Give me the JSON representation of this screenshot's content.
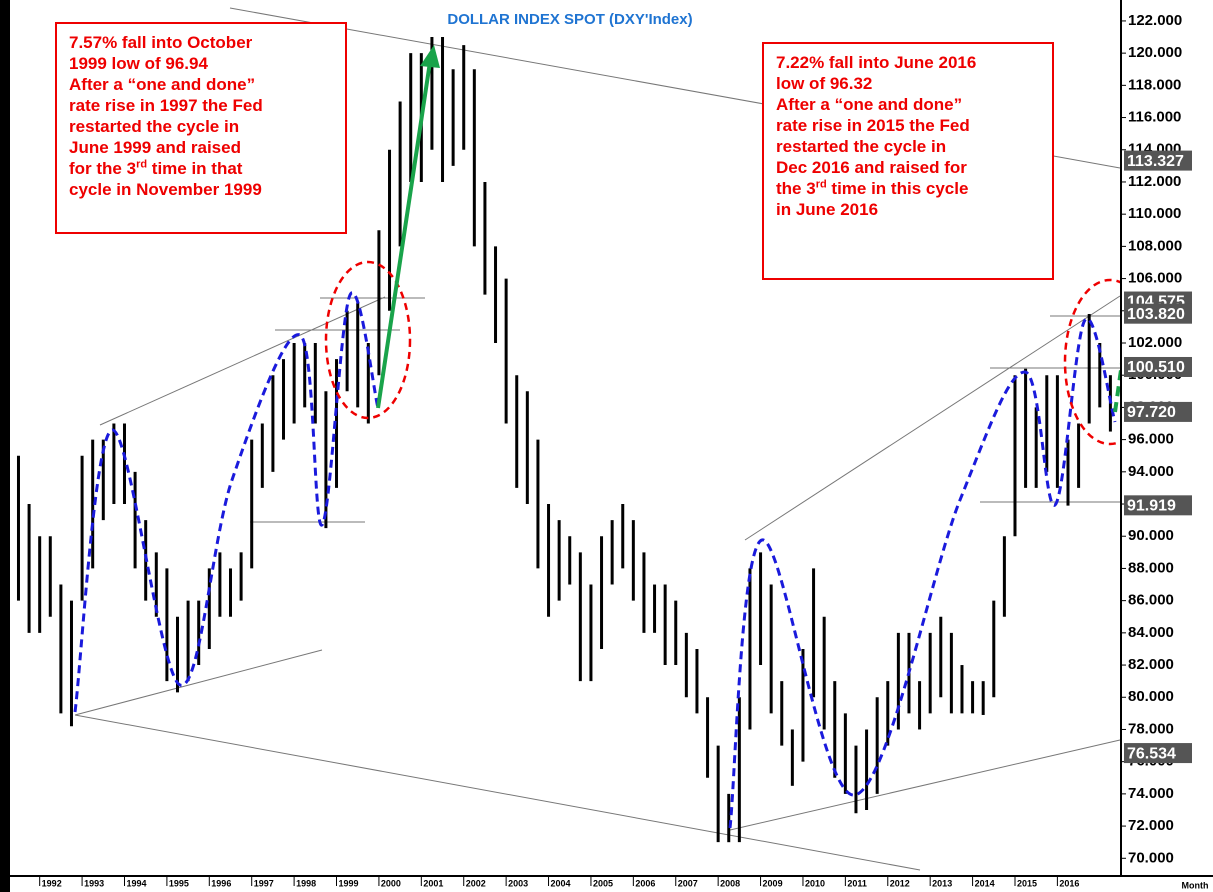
{
  "chart_data": {
    "type": "range-bar",
    "title": "DOLLAR INDEX SPOT (DXY'Index)",
    "x_label": "Month",
    "color": "#000000",
    "x": [
      1991.5,
      1991.75,
      1992.0,
      1992.25,
      1992.5,
      1992.75,
      1993.0,
      1993.25,
      1993.5,
      1993.75,
      1994.0,
      1994.25,
      1994.5,
      1994.75,
      1995.0,
      1995.25,
      1995.5,
      1995.75,
      1996.0,
      1996.25,
      1996.5,
      1996.75,
      1997.0,
      1997.25,
      1997.5,
      1997.75,
      1998.0,
      1998.25,
      1998.5,
      1998.75,
      1999.0,
      1999.25,
      1999.5,
      1999.75,
      2000.0,
      2000.25,
      2000.5,
      2000.75,
      2001.0,
      2001.25,
      2001.5,
      2001.75,
      2002.0,
      2002.25,
      2002.5,
      2002.75,
      2003.0,
      2003.25,
      2003.5,
      2003.75,
      2004.0,
      2004.25,
      2004.5,
      2004.75,
      2005.0,
      2005.25,
      2005.5,
      2005.75,
      2006.0,
      2006.25,
      2006.5,
      2006.75,
      2007.0,
      2007.25,
      2007.5,
      2007.75,
      2008.0,
      2008.25,
      2008.5,
      2008.75,
      2009.0,
      2009.25,
      2009.5,
      2009.75,
      2010.0,
      2010.25,
      2010.5,
      2010.75,
      2011.0,
      2011.25,
      2011.5,
      2011.75,
      2012.0,
      2012.25,
      2012.5,
      2012.75,
      2013.0,
      2013.25,
      2013.5,
      2013.75,
      2014.0,
      2014.25,
      2014.5,
      2014.75,
      2015.0,
      2015.25,
      2015.5,
      2015.75,
      2016.0,
      2016.25,
      2016.5,
      2016.75,
      2017.0,
      2017.25
    ],
    "high": [
      95,
      92,
      90,
      90,
      87,
      86,
      95,
      96,
      96,
      97,
      97,
      94,
      91,
      89,
      88,
      85,
      86,
      86,
      88,
      89,
      88,
      89,
      96,
      97,
      100,
      101,
      102,
      102,
      102,
      99,
      101,
      104,
      104.5,
      102,
      109,
      114,
      117,
      120,
      120,
      121,
      121,
      119,
      120.5,
      119,
      112,
      108,
      106,
      100,
      99,
      96,
      92,
      91,
      90,
      89,
      87,
      90,
      91,
      92,
      91,
      89,
      87,
      87,
      86,
      84,
      83,
      80,
      77,
      74,
      80,
      88,
      89,
      87,
      81,
      78,
      83,
      88,
      85,
      81,
      79,
      77,
      78,
      80,
      81,
      84,
      84,
      81,
      84,
      85,
      84,
      82,
      81,
      81,
      86,
      90,
      100,
      100.4,
      98,
      100,
      100,
      96,
      97,
      103.8,
      102,
      100
    ],
    "low": [
      86,
      84,
      84,
      85,
      79,
      78.2,
      86,
      88,
      91,
      92,
      92,
      88,
      86,
      85,
      81,
      80.3,
      81,
      82,
      83,
      85,
      85,
      86,
      88,
      93,
      94,
      96,
      97,
      98,
      97,
      90.5,
      93,
      99,
      98,
      97,
      100,
      104,
      108,
      112,
      112,
      114,
      112,
      113,
      114,
      108,
      105,
      102,
      97,
      93,
      92,
      88,
      85,
      86,
      87,
      81,
      81,
      83,
      87,
      88,
      86,
      84,
      84,
      82,
      82,
      80,
      79,
      75,
      71,
      71,
      71,
      78,
      82,
      79,
      77,
      74.5,
      76,
      80,
      78,
      75,
      74,
      72.8,
      73,
      74,
      77,
      78,
      79,
      78,
      79,
      80,
      79,
      79,
      79,
      78.9,
      80,
      85,
      90,
      93,
      93,
      94,
      93,
      91.9,
      93,
      97,
      98,
      96.5
    ],
    "xlim": [
      1991.3,
      2017.5
    ],
    "xticks": [
      1992,
      1993,
      1994,
      1995,
      1996,
      1997,
      1998,
      1999,
      2000,
      2001,
      2002,
      2003,
      2004,
      2005,
      2006,
      2007,
      2008,
      2009,
      2010,
      2011,
      2012,
      2013,
      2014,
      2015,
      2016
    ],
    "ylim": [
      68.9,
      123.3
    ],
    "yticks": [
      {
        "value": 70,
        "label": "70.000"
      },
      {
        "value": 72,
        "label": "72.000"
      },
      {
        "value": 74,
        "label": "74.000"
      },
      {
        "value": 76,
        "label": "76.000"
      },
      {
        "value": 78,
        "label": "78.000"
      },
      {
        "value": 80,
        "label": "80.000"
      },
      {
        "value": 82,
        "label": "82.000"
      },
      {
        "value": 84,
        "label": "84.000"
      },
      {
        "value": 86,
        "label": "86.000"
      },
      {
        "value": 88,
        "label": "88.000"
      },
      {
        "value": 90,
        "label": "90.000"
      },
      {
        "value": 92,
        "label": "92.000"
      },
      {
        "value": 94,
        "label": "94.000"
      },
      {
        "value": 96,
        "label": "96.000"
      },
      {
        "value": 98,
        "label": "98.000"
      },
      {
        "value": 100,
        "label": "100.000"
      },
      {
        "value": 102,
        "label": "102.000"
      },
      {
        "value": 104,
        "label": "104.000"
      },
      {
        "value": 106,
        "label": "106.000"
      },
      {
        "value": 108,
        "label": "108.000"
      },
      {
        "value": 110,
        "label": "110.000"
      },
      {
        "value": 112,
        "label": "112.000"
      },
      {
        "value": 114,
        "label": "114.000"
      },
      {
        "value": 116,
        "label": "116.000"
      },
      {
        "value": 118,
        "label": "118.000"
      },
      {
        "value": 120,
        "label": "120.000"
      },
      {
        "value": 122,
        "label": "122.000"
      }
    ],
    "levels": [
      113.327,
      104.575,
      {
        "value": 103.82,
        "label": "103.820"
      },
      {
        "value": 100.51,
        "label": "100.510"
      },
      {
        "value": 97.72,
        "label": "97.720"
      },
      91.919,
      76.534
    ],
    "annotations": [
      {
        "lines": [
          "7.57% fall into October",
          "1999 low of 96.94",
          "After a “one and done”",
          "rate rise in 1997 the Fed",
          "restarted the cycle in",
          "June 1999 and raised",
          {
            "text": "for the 3",
            "sup": "rd",
            "after": " time in that"
          },
          "cycle in November 1999"
        ]
      },
      {
        "lines": [
          "7.22% fall into June 2016",
          "low of 96.32",
          "After a “one and done”",
          "rate rise in 2015 the Fed",
          "restarted the cycle in",
          "Dec 2016 and raised for",
          {
            "text": "the 3",
            "sup": "rd",
            "after": " time in this cycle"
          },
          "in June 2016"
        ]
      }
    ]
  }
}
